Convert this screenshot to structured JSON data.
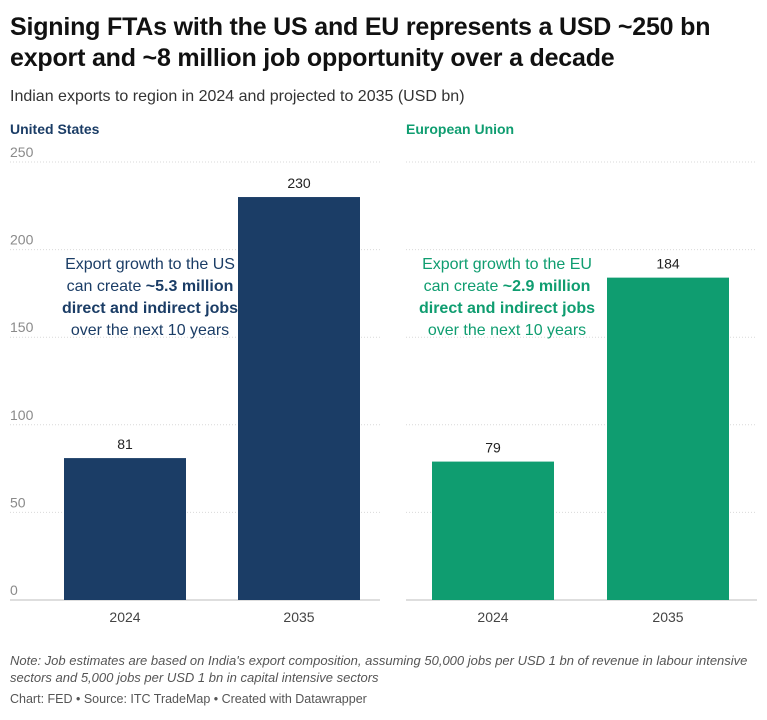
{
  "title": "Signing FTAs with the US and EU represents a USD ~250 bn export and ~8 million job opportunity over a decade",
  "subtitle": "Indian exports to region in 2024 and projected to 2035 (USD bn)",
  "chart_data": [
    {
      "type": "bar",
      "title": "United States",
      "categories": [
        "2024",
        "2035"
      ],
      "values": [
        81,
        230
      ],
      "ylim": [
        0,
        250
      ],
      "yticks": [
        0,
        50,
        100,
        150,
        200,
        250
      ],
      "color": "#1b3d66",
      "annotation": {
        "line1": "Export growth to the US",
        "line2_prefix": "can create ",
        "line2_bold": "~5.3 million",
        "line3_bold": "direct and indirect jobs",
        "line4": "over the next 10 years"
      }
    },
    {
      "type": "bar",
      "title": "European Union",
      "categories": [
        "2024",
        "2035"
      ],
      "values": [
        79,
        184
      ],
      "ylim": [
        0,
        250
      ],
      "yticks": [
        0,
        50,
        100,
        150,
        200,
        250
      ],
      "color": "#0f9d70",
      "annotation": {
        "line1": "Export growth to the EU",
        "line2_prefix": "can create ",
        "line2_bold": "~2.9 million",
        "line3_bold": "direct and indirect jobs",
        "line4": "over the next 10 years"
      }
    }
  ],
  "colors": {
    "us": "#1b3d66",
    "eu": "#0f9d70",
    "grid": "#d9d9d9",
    "tick_text": "#8a8a8a"
  },
  "note": "Note: Job estimates are based on India's export composition, assuming 50,000 jobs per USD 1 bn of revenue in labour intensive sectors and 5,000 jobs per USD 1 bn in capital intensive sectors",
  "credit": "Chart: FED • Source: ITC TradeMap • Created with Datawrapper"
}
